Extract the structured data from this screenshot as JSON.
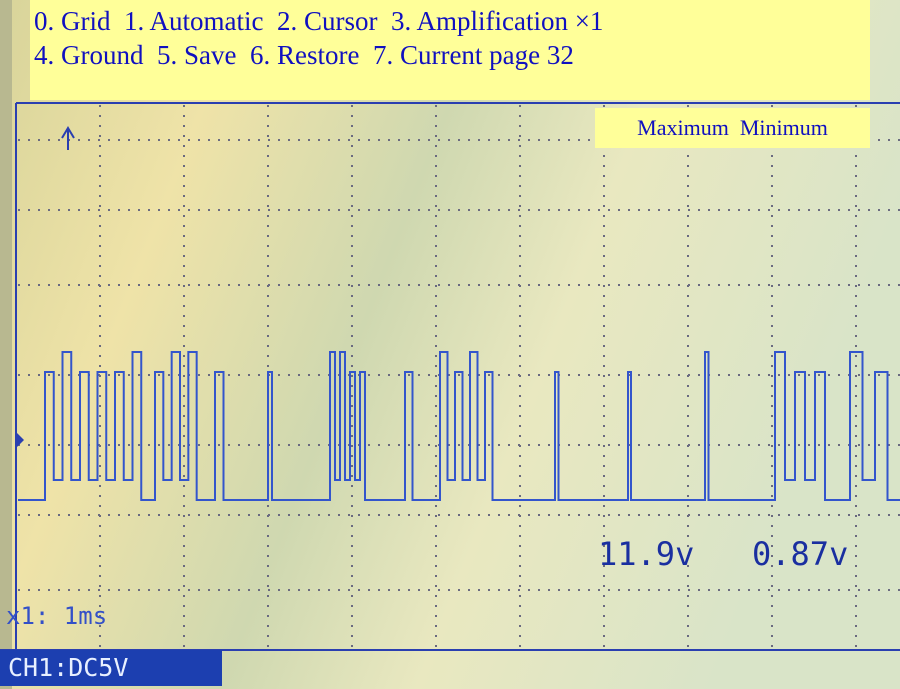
{
  "menu": {
    "line1": "0. Grid  1. Automatic  2. Cursor  3. Amplification ×1",
    "line2": "4. Ground  5. Save  6. Restore  7. Current page 32"
  },
  "legend": "Maximum  Minimum",
  "readings": {
    "maximum": "11.9v",
    "minimum": "0.87v"
  },
  "timebase": "x1: 1ms",
  "channel": "CH1:DC5V"
}
